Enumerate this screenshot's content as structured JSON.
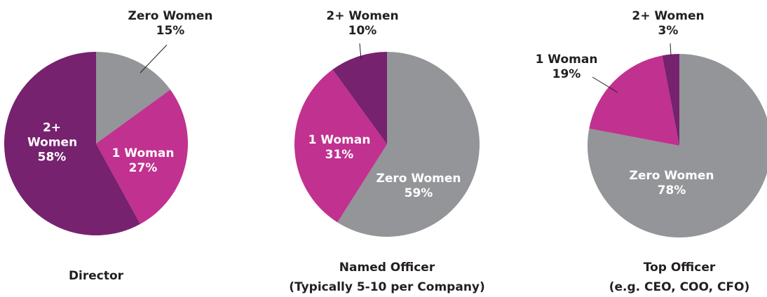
{
  "chart_data": [
    {
      "type": "pie",
      "title": "Director",
      "categories": [
        "Zero Women",
        "1 Woman",
        "2+ Women"
      ],
      "values": [
        15,
        27,
        58
      ],
      "value_labels": [
        "15%",
        "27%",
        "58%"
      ],
      "colors": [
        "#939598",
        "#c1318f",
        "#76226f"
      ]
    },
    {
      "type": "pie",
      "title": "Named Officer",
      "subtitle": "(Typically 5-10 per Company)",
      "categories": [
        "Zero Women",
        "1 Woman",
        "2+ Women"
      ],
      "values": [
        59,
        31,
        10
      ],
      "value_labels": [
        "59%",
        "31%",
        "10%"
      ],
      "colors": [
        "#939598",
        "#c1318f",
        "#76226f"
      ]
    },
    {
      "type": "pie",
      "title": "Top Officer",
      "subtitle": "(e.g. CEO, COO, CFO)",
      "categories": [
        "Zero Women",
        "1 Woman",
        "2+ Women"
      ],
      "values": [
        78,
        19,
        3
      ],
      "value_labels": [
        "78%",
        "19%",
        "3%"
      ],
      "colors": [
        "#939598",
        "#c1318f",
        "#76226f"
      ]
    }
  ]
}
